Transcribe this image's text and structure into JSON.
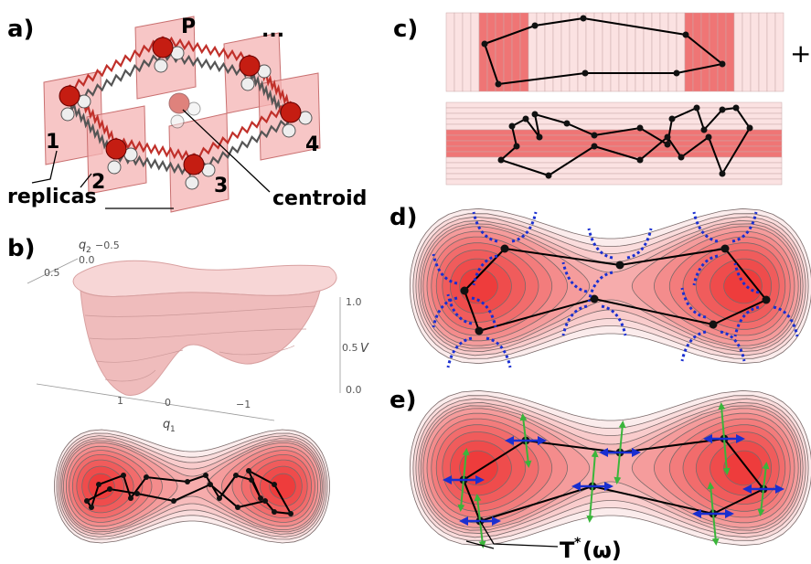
{
  "panels": {
    "a": {
      "label": "a)",
      "top_replica": "P",
      "ellipsis": "...",
      "replica_numbers": [
        "1",
        "2",
        "3",
        "4"
      ],
      "replicas": "replicas",
      "centroid": "centroid"
    },
    "b": {
      "label": "b)",
      "q2_symbol": "q",
      "q2_subscript": "2",
      "q2_ticks": [
        "−0.5",
        "0.0",
        "0.5"
      ],
      "v_ticks": [
        "1.0",
        "0.5",
        "0.0"
      ],
      "v_symbol": "V",
      "q1_ticks": [
        "1",
        "0",
        "−1"
      ],
      "q1_symbol": "q",
      "q1_subscript": "1"
    },
    "c": {
      "label": "c)",
      "plus": "+"
    },
    "d": {
      "label": "d)"
    },
    "e": {
      "label": "e)",
      "operator": "T",
      "operator_sup": "*",
      "operator_arg": "(ω)"
    }
  }
}
